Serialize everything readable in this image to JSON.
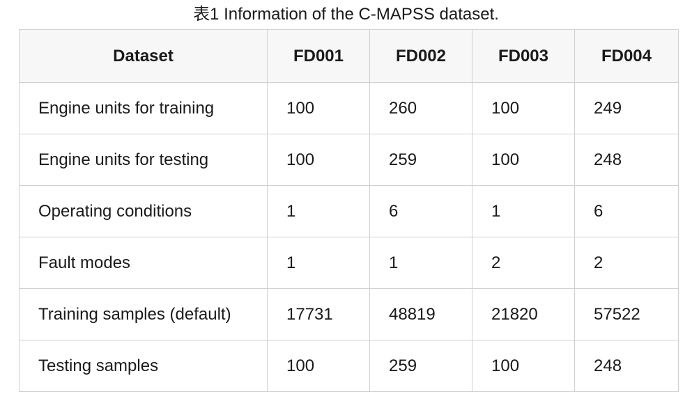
{
  "caption": "表1 Information of the C-MAPSS dataset.",
  "table": {
    "headers": [
      "Dataset",
      "FD001",
      "FD002",
      "FD003",
      "FD004"
    ],
    "rows": [
      {
        "label": "Engine units for training",
        "values": [
          "100",
          "260",
          "100",
          "249"
        ]
      },
      {
        "label": "Engine units for testing",
        "values": [
          "100",
          "259",
          "100",
          "248"
        ]
      },
      {
        "label": "Operating conditions",
        "values": [
          "1",
          "6",
          "1",
          "6"
        ]
      },
      {
        "label": "Fault modes",
        "values": [
          "1",
          "1",
          "2",
          "2"
        ]
      },
      {
        "label": "Training samples (default)",
        "values": [
          "17731",
          "48819",
          "21820",
          "57522"
        ]
      },
      {
        "label": "Testing samples",
        "values": [
          "100",
          "259",
          "100",
          "248"
        ]
      }
    ]
  }
}
